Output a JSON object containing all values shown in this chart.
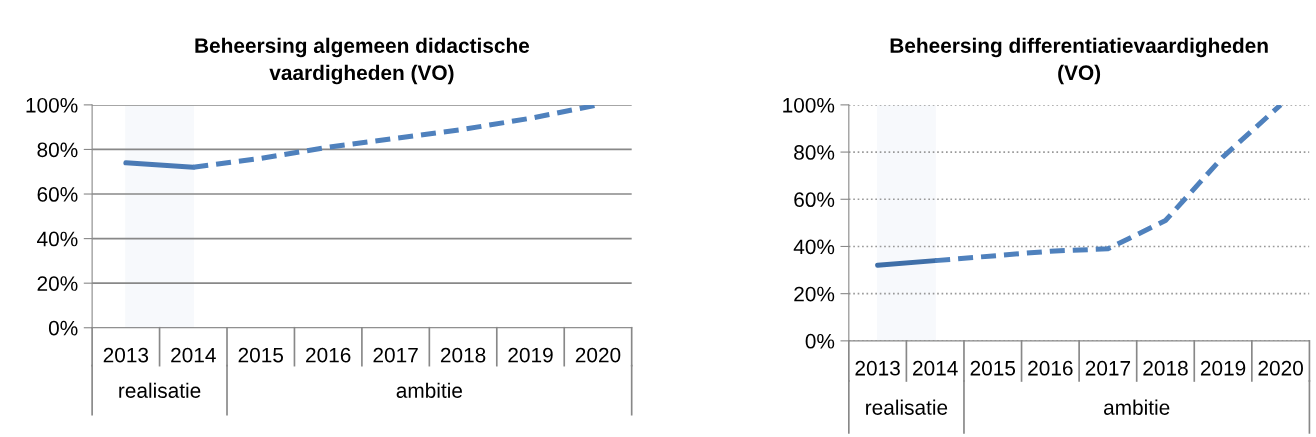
{
  "chart_data": [
    {
      "type": "line",
      "title": "Beheersing algemeen didactische\nvaardigheden (VO)",
      "categories": [
        "2013",
        "2014",
        "2015",
        "2016",
        "2017",
        "2018",
        "2019",
        "2020"
      ],
      "series": [
        {
          "color": "#4a7ab5",
          "line_style": "solid",
          "values": [
            74,
            72,
            null,
            null,
            null,
            null,
            null,
            null
          ]
        },
        {
          "color": "#4f81bd",
          "line_style": "dashed",
          "values": [
            null,
            72,
            76,
            81,
            85,
            89,
            94,
            100
          ]
        }
      ],
      "ylim": [
        0,
        100
      ],
      "yticks": [
        {
          "value": 0,
          "label": "0%"
        },
        {
          "value": 20,
          "label": "20%"
        },
        {
          "value": 40,
          "label": "40%"
        },
        {
          "value": 60,
          "label": "60%"
        },
        {
          "value": 80,
          "label": "80%"
        },
        {
          "value": 100,
          "label": "100%"
        }
      ],
      "grid": "y",
      "bands": [
        {
          "axis": "x",
          "from": "2013",
          "to": "2014",
          "color": "#f7f9fc"
        }
      ],
      "annotations": [
        "realisatie",
        "ambitie"
      ]
    },
    {
      "type": "line",
      "title": "Beheersing differentiatievaardigheden\n(VO)",
      "categories": [
        "2013",
        "2014",
        "2015",
        "2016",
        "2017",
        "2018",
        "2019",
        "2020"
      ],
      "series": [
        {
          "color": "#3f6fa8",
          "line_style": "solid",
          "values": [
            32,
            34,
            null,
            null,
            null,
            null,
            null,
            null
          ]
        },
        {
          "color": "#4f81bd",
          "line_style": "dashed",
          "values": [
            null,
            34,
            36,
            38,
            39,
            51,
            78,
            100
          ]
        }
      ],
      "ylim": [
        0,
        100
      ],
      "yticks": [
        {
          "value": 0,
          "label": "0%"
        },
        {
          "value": 20,
          "label": "20%"
        },
        {
          "value": 40,
          "label": "40%"
        },
        {
          "value": 60,
          "label": "60%"
        },
        {
          "value": 80,
          "label": "80%"
        },
        {
          "value": 100,
          "label": "100%"
        }
      ],
      "grid": "y",
      "bands": [
        {
          "axis": "x",
          "from": "2013",
          "to": "2014",
          "color": "#f7f9fc"
        }
      ],
      "annotations": [
        "realisatie",
        "ambitie"
      ]
    }
  ]
}
